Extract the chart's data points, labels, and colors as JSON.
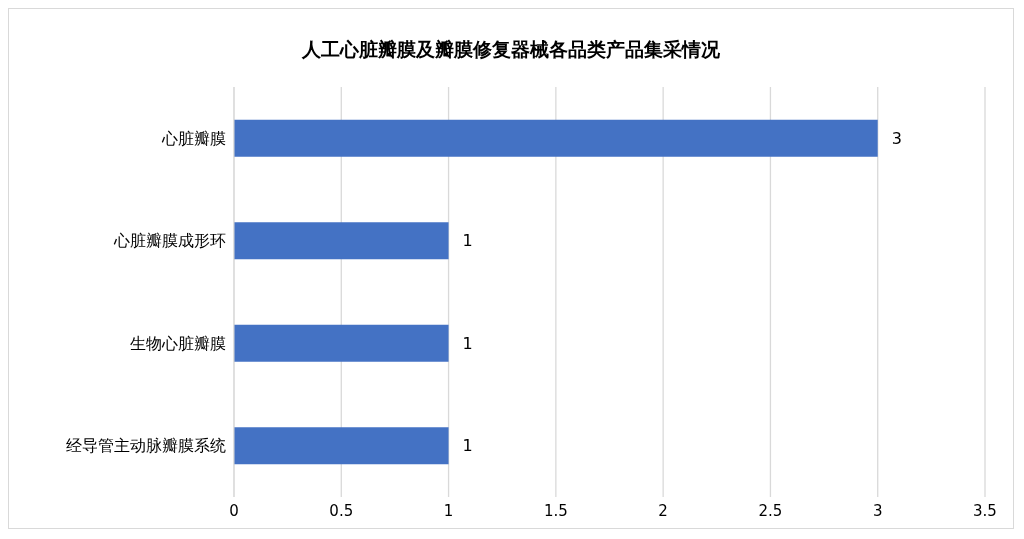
{
  "chart_data": {
    "type": "bar",
    "orientation": "horizontal",
    "title": "人工心脏瓣膜及瓣膜修复器械各品类产品集采情况",
    "categories": [
      "心脏瓣膜",
      "心脏瓣膜成形环",
      "生物心脏瓣膜",
      "经导管主动脉瓣膜系统"
    ],
    "values": [
      3,
      1,
      1,
      1
    ],
    "color": "#4472c4",
    "xlim": [
      0,
      3.5
    ],
    "xticks": [
      0,
      0.5,
      1,
      1.5,
      2,
      2.5,
      3,
      3.5
    ],
    "grid": "x",
    "data_labels": true
  }
}
